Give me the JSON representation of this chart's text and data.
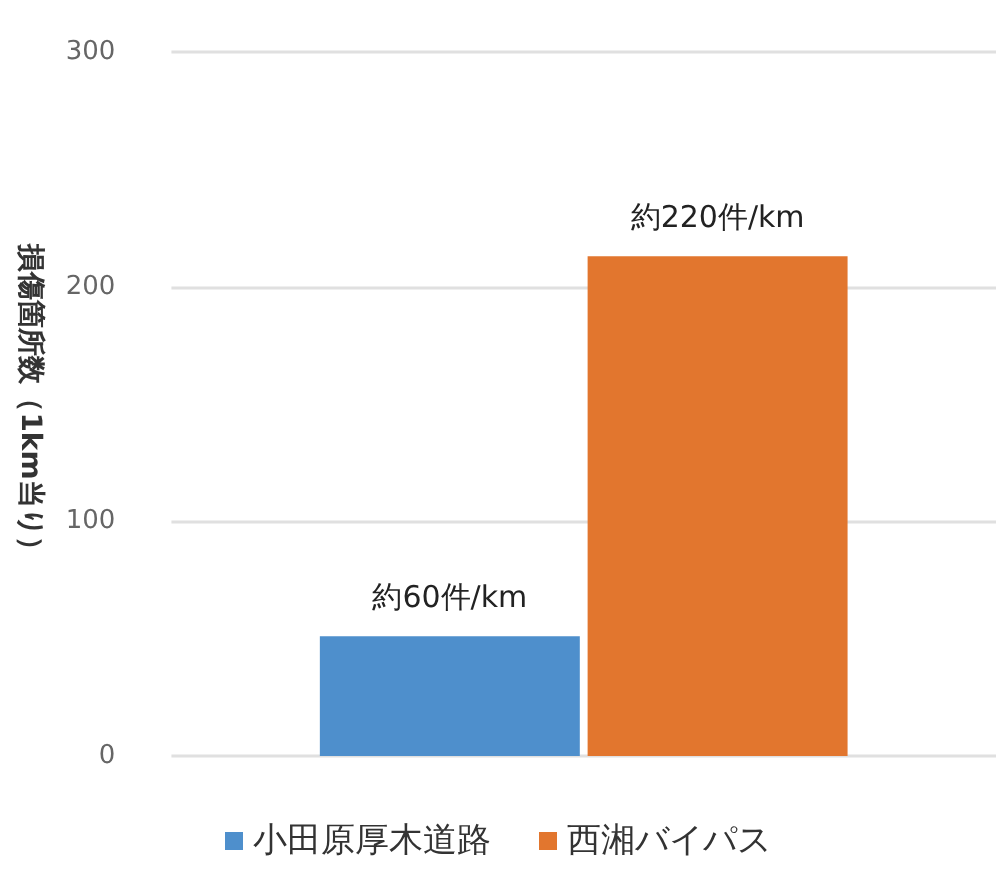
{
  "chart_data": {
    "type": "bar",
    "ylabel": "損傷箇所数（1km当り）",
    "categories": [
      null
    ],
    "series": [
      {
        "name": "小田原厚木道路",
        "color": "#4e8fcc",
        "values": [
          51
        ],
        "value_labels": [
          "約60件/km"
        ]
      },
      {
        "name": "西湘バイパス",
        "color": "#e2762e",
        "values": [
          213
        ],
        "value_labels": [
          "約220件/km"
        ]
      }
    ],
    "ylim": [
      0,
      300
    ],
    "yticks": [
      0,
      100,
      200,
      300
    ],
    "grid": "y",
    "legend": "bottom"
  }
}
